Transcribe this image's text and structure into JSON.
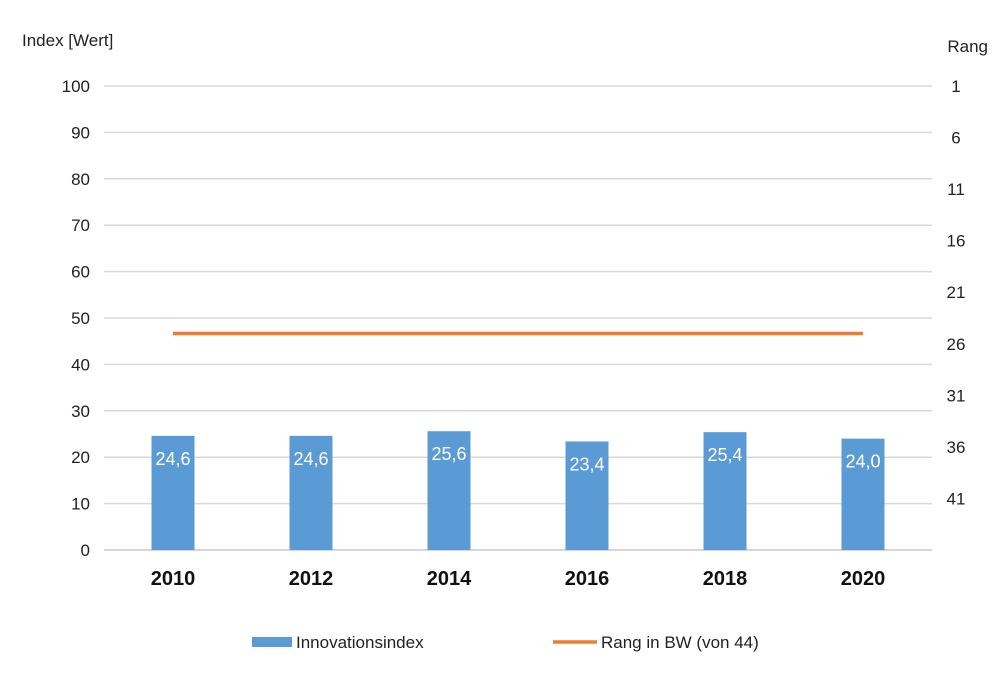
{
  "chart_data": {
    "type": "bar",
    "categories": [
      "2010",
      "2012",
      "2014",
      "2016",
      "2018",
      "2020"
    ],
    "series": [
      {
        "name": "Innovationsindex",
        "kind": "bar",
        "axis": "left",
        "color": "#5b9bd5",
        "values": [
          24.6,
          24.6,
          25.6,
          23.4,
          25.4,
          24.0
        ],
        "data_labels": [
          "24,6",
          "24,6",
          "25,6",
          "23,4",
          "25,4",
          "24,0"
        ]
      },
      {
        "name": "Rang in BW (von 44)",
        "kind": "line",
        "axis": "right",
        "color": "#ed7d31",
        "values": [
          25,
          25,
          25,
          25,
          25,
          25
        ]
      }
    ],
    "ylabel": "Index [Wert]",
    "ylim": [
      0,
      100
    ],
    "yticks": [
      "0",
      "10",
      "20",
      "30",
      "40",
      "50",
      "60",
      "70",
      "80",
      "90",
      "100"
    ],
    "y2label": "Rang",
    "y2_reversed": true,
    "y2ticks": [
      "1",
      "6",
      "11",
      "16",
      "21",
      "26",
      "31",
      "36",
      "41"
    ],
    "grid": true,
    "legend_position": "bottom"
  }
}
